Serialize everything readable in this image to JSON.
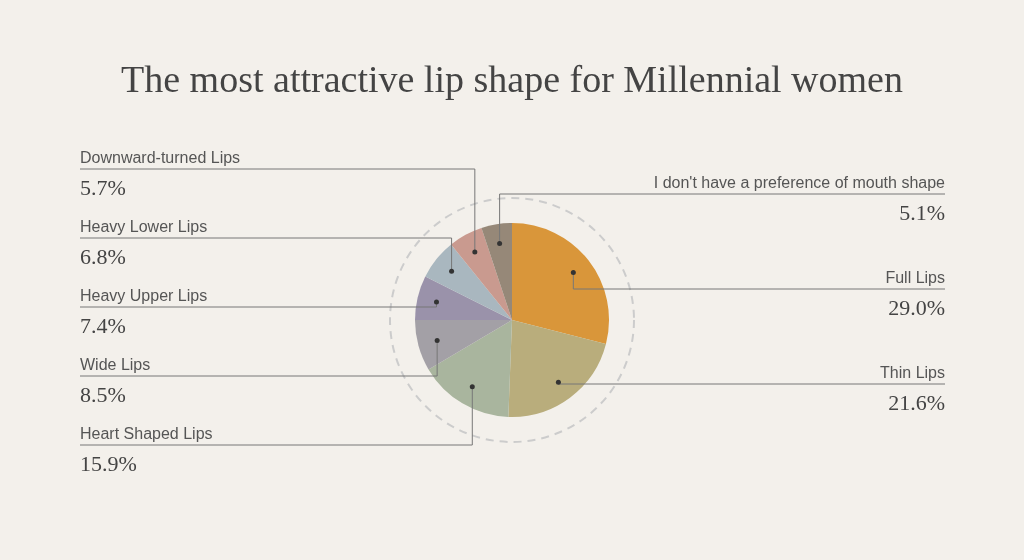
{
  "chart_data": {
    "type": "pie",
    "title": "The most attractive lip shape for Millennial women",
    "categories": [
      "Full Lips",
      "Thin Lips",
      "Heart Shaped Lips",
      "Wide Lips",
      "Heavy Upper Lips",
      "Heavy Lower Lips",
      "Downward-turned Lips",
      "I don't have a preference of mouth shape"
    ],
    "values": [
      29.0,
      21.6,
      15.9,
      8.5,
      7.4,
      6.8,
      5.7,
      5.1
    ],
    "colors": [
      "#d9963a",
      "#b9ad7c",
      "#a9b59e",
      "#a3a0a6",
      "#9a92aa",
      "#a9b7bf",
      "#c99a8f",
      "#968878"
    ],
    "value_labels": [
      "29.0%",
      "21.6%",
      "15.9%",
      "8.5%",
      "7.4%",
      "6.8%",
      "5.7%",
      "5.1%"
    ]
  }
}
